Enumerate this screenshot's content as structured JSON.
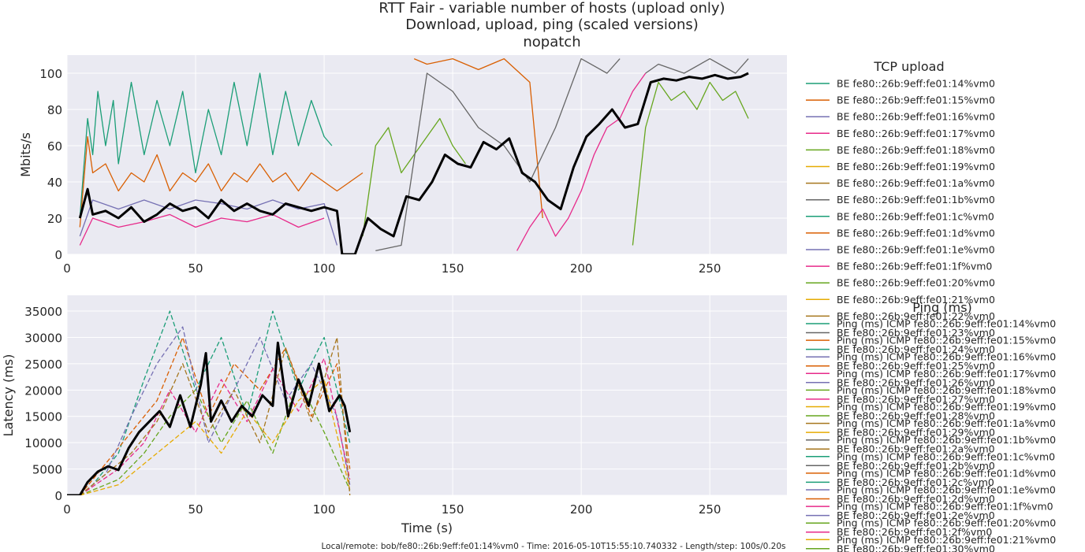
{
  "chart_data": {
    "type": "line",
    "title_lines": [
      "RTT Fair - variable number of hosts (upload only)",
      "Download, upload, ping (scaled versions)",
      "nopatch"
    ],
    "footer": "Local/remote: bob/fe80::26b:9eff:fe01:14%vm0 - Time: 2016-05-10T15:55:10.740332 - Length/step: 100s/0.20s",
    "palette": [
      "#1b9e77",
      "#d95f02",
      "#7570b3",
      "#e7298a",
      "#66a61e",
      "#e6ab02",
      "#a6761d",
      "#666666"
    ],
    "panels": [
      {
        "id": "upload",
        "ylabel": "Mbits/s",
        "xlim": [
          0,
          280
        ],
        "ylim": [
          0,
          110
        ],
        "xticks": [
          0,
          50,
          100,
          150,
          200,
          250
        ],
        "yticks": [
          0,
          20,
          40,
          60,
          80,
          100
        ],
        "legend_title": "TCP upload",
        "series_labels": [
          "BE fe80::26b:9eff:fe01:14%vm0",
          "BE fe80::26b:9eff:fe01:15%vm0",
          "BE fe80::26b:9eff:fe01:16%vm0",
          "BE fe80::26b:9eff:fe01:17%vm0",
          "BE fe80::26b:9eff:fe01:18%vm0",
          "BE fe80::26b:9eff:fe01:19%vm0",
          "BE fe80::26b:9eff:fe01:1a%vm0",
          "BE fe80::26b:9eff:fe01:1b%vm0",
          "BE fe80::26b:9eff:fe01:1c%vm0",
          "BE fe80::26b:9eff:fe01:1d%vm0",
          "BE fe80::26b:9eff:fe01:1e%vm0",
          "BE fe80::26b:9eff:fe01:1f%vm0",
          "BE fe80::26b:9eff:fe01:20%vm0",
          "BE fe80::26b:9eff:fe01:21%vm0",
          "BE fe80::26b:9eff:fe01:22%vm0",
          "BE fe80::26b:9eff:fe01:23%vm0",
          "BE fe80::26b:9eff:fe01:24%vm0",
          "BE fe80::26b:9eff:fe01:25%vm0",
          "BE fe80::26b:9eff:fe01:26%vm0",
          "BE fe80::26b:9eff:fe01:27%vm0",
          "BE fe80::26b:9eff:fe01:28%vm0",
          "BE fe80::26b:9eff:fe01:29%vm0",
          "BE fe80::26b:9eff:fe01:2a%vm0",
          "BE fe80::26b:9eff:fe01:2b%vm0",
          "BE fe80::26b:9eff:fe01:2c%vm0",
          "BE fe80::26b:9eff:fe01:2d%vm0",
          "BE fe80::26b:9eff:fe01:2e%vm0",
          "BE fe80::26b:9eff:fe01:2f%vm0",
          "BE fe80::26b:9eff:fe01:30%vm0"
        ],
        "series": [
          {
            "color": "#1b9e77",
            "dashed": false,
            "x": [
              5,
              8,
              10,
              12,
              15,
              18,
              20,
              25,
              30,
              35,
              40,
              45,
              50,
              55,
              60,
              65,
              70,
              75,
              80,
              85,
              90,
              95,
              100,
              103
            ],
            "y": [
              20,
              75,
              55,
              90,
              60,
              85,
              50,
              95,
              55,
              85,
              60,
              90,
              45,
              80,
              55,
              95,
              60,
              100,
              55,
              90,
              60,
              85,
              65,
              60
            ]
          },
          {
            "color": "#d95f02",
            "dashed": false,
            "x": [
              5,
              8,
              10,
              15,
              20,
              25,
              30,
              35,
              40,
              45,
              50,
              55,
              60,
              65,
              70,
              75,
              80,
              85,
              90,
              95,
              100,
              105,
              110,
              115
            ],
            "y": [
              15,
              65,
              45,
              50,
              35,
              45,
              40,
              55,
              35,
              45,
              40,
              50,
              35,
              45,
              40,
              50,
              40,
              45,
              35,
              45,
              40,
              35,
              40,
              45
            ]
          },
          {
            "color": "#d95f02",
            "dashed": false,
            "x": [
              135,
              140,
              150,
              160,
              170,
              180,
              185
            ],
            "y": [
              108,
              105,
              108,
              102,
              108,
              95,
              20
            ]
          },
          {
            "color": "#7570b3",
            "dashed": false,
            "x": [
              5,
              10,
              20,
              30,
              40,
              50,
              60,
              70,
              80,
              90,
              100,
              105
            ],
            "y": [
              10,
              30,
              25,
              30,
              25,
              30,
              28,
              25,
              30,
              25,
              28,
              5
            ]
          },
          {
            "color": "#e7298a",
            "dashed": false,
            "x": [
              5,
              10,
              20,
              30,
              40,
              50,
              60,
              70,
              80,
              90,
              100
            ],
            "y": [
              5,
              20,
              15,
              18,
              22,
              15,
              20,
              18,
              22,
              15,
              20
            ]
          },
          {
            "color": "#e7298a",
            "dashed": false,
            "x": [
              175,
              180,
              185,
              190,
              195,
              200,
              205,
              210,
              215,
              220,
              225
            ],
            "y": [
              2,
              15,
              25,
              10,
              20,
              35,
              55,
              70,
              75,
              90,
              100
            ]
          },
          {
            "color": "#66a61e",
            "dashed": false,
            "x": [
              115,
              120,
              125,
              130,
              135,
              140,
              145,
              150,
              155
            ],
            "y": [
              10,
              60,
              70,
              45,
              55,
              65,
              75,
              60,
              50
            ]
          },
          {
            "color": "#66a61e",
            "dashed": false,
            "x": [
              220,
              225,
              230,
              235,
              240,
              245,
              250,
              255,
              260,
              265
            ],
            "y": [
              5,
              70,
              95,
              85,
              90,
              80,
              95,
              85,
              90,
              75
            ]
          },
          {
            "color": "#666666",
            "dashed": false,
            "x": [
              120,
              130,
              140,
              150,
              160,
              170,
              180,
              190,
              200,
              210,
              215
            ],
            "y": [
              2,
              5,
              100,
              90,
              70,
              60,
              40,
              70,
              108,
              100,
              108
            ]
          },
          {
            "color": "#666666",
            "dashed": false,
            "x": [
              225,
              230,
              240,
              250,
              260,
              265
            ],
            "y": [
              100,
              105,
              100,
              108,
              100,
              108
            ]
          },
          {
            "color": "#000000",
            "dashed": false,
            "width": 3,
            "x": [
              5,
              8,
              10,
              15,
              20,
              25,
              30,
              35,
              40,
              45,
              50,
              55,
              60,
              65,
              70,
              75,
              80,
              85,
              90,
              95,
              100,
              105,
              107,
              112,
              117,
              122,
              127,
              132,
              137,
              142,
              147,
              152,
              157,
              162,
              167,
              172,
              177,
              182,
              187,
              192,
              197,
              202,
              207,
              212,
              217,
              222,
              227,
              232,
              237,
              242,
              247,
              252,
              257,
              262,
              265
            ],
            "y": [
              20,
              36,
              22,
              24,
              20,
              26,
              18,
              22,
              28,
              24,
              26,
              20,
              30,
              24,
              28,
              24,
              22,
              28,
              26,
              24,
              26,
              24,
              0,
              0,
              20,
              14,
              10,
              32,
              30,
              40,
              55,
              50,
              48,
              62,
              58,
              64,
              45,
              40,
              30,
              25,
              48,
              65,
              72,
              80,
              70,
              72,
              95,
              97,
              96,
              98,
              97,
              99,
              97,
              98,
              100
            ]
          }
        ]
      },
      {
        "id": "ping",
        "ylabel": "Latency (ms)",
        "xlabel": "Time (s)",
        "xlim": [
          0,
          280
        ],
        "ylim": [
          0,
          38000
        ],
        "xticks": [
          0,
          50,
          100,
          150,
          200,
          250
        ],
        "yticks": [
          0,
          5000,
          10000,
          15000,
          20000,
          25000,
          30000,
          35000
        ],
        "legend_title": "Ping (ms)",
        "series_labels": [
          "Ping (ms) ICMP fe80::26b:9eff:fe01:14%vm0",
          "Ping (ms) ICMP fe80::26b:9eff:fe01:15%vm0",
          "Ping (ms) ICMP fe80::26b:9eff:fe01:16%vm0",
          "Ping (ms) ICMP fe80::26b:9eff:fe01:17%vm0",
          "Ping (ms) ICMP fe80::26b:9eff:fe01:18%vm0",
          "Ping (ms) ICMP fe80::26b:9eff:fe01:19%vm0",
          "Ping (ms) ICMP fe80::26b:9eff:fe01:1a%vm0",
          "Ping (ms) ICMP fe80::26b:9eff:fe01:1b%vm0",
          "Ping (ms) ICMP fe80::26b:9eff:fe01:1c%vm0",
          "Ping (ms) ICMP fe80::26b:9eff:fe01:1d%vm0",
          "Ping (ms) ICMP fe80::26b:9eff:fe01:1e%vm0",
          "Ping (ms) ICMP fe80::26b:9eff:fe01:1f%vm0",
          "Ping (ms) ICMP fe80::26b:9eff:fe01:20%vm0",
          "Ping (ms) ICMP fe80::26b:9eff:fe01:21%vm0"
        ],
        "series": [
          {
            "color": "#1b9e77",
            "dashed": true,
            "x": [
              5,
              10,
              20,
              30,
              40,
              50,
              60,
              70,
              80,
              90,
              100,
              110
            ],
            "y": [
              0,
              2000,
              8000,
              22000,
              35000,
              20000,
              30000,
              15000,
              35000,
              20000,
              30000,
              10000
            ]
          },
          {
            "color": "#d95f02",
            "dashed": true,
            "x": [
              5,
              15,
              25,
              35,
              45,
              55,
              65,
              75,
              85,
              95,
              105,
              110
            ],
            "y": [
              0,
              6000,
              12000,
              18000,
              30000,
              15000,
              25000,
              20000,
              28000,
              15000,
              25000,
              5000
            ]
          },
          {
            "color": "#7570b3",
            "dashed": true,
            "x": [
              5,
              15,
              25,
              35,
              45,
              55,
              65,
              75,
              85,
              95,
              105,
              110
            ],
            "y": [
              0,
              4000,
              15000,
              25000,
              32000,
              10000,
              20000,
              30000,
              18000,
              25000,
              15000,
              2000
            ]
          },
          {
            "color": "#e7298a",
            "dashed": true,
            "x": [
              5,
              20,
              30,
              40,
              50,
              60,
              70,
              80,
              90,
              100,
              110
            ],
            "y": [
              0,
              5000,
              10000,
              20000,
              12000,
              22000,
              14000,
              24000,
              16000,
              26000,
              3000
            ]
          },
          {
            "color": "#66a61e",
            "dashed": true,
            "x": [
              5,
              20,
              30,
              40,
              50,
              60,
              70,
              80,
              90,
              100,
              110
            ],
            "y": [
              0,
              3000,
              8000,
              15000,
              20000,
              10000,
              18000,
              8000,
              22000,
              12000,
              1000
            ]
          },
          {
            "color": "#e6ab02",
            "dashed": true,
            "x": [
              5,
              20,
              30,
              40,
              50,
              60,
              70,
              80,
              90,
              100,
              110
            ],
            "y": [
              0,
              2000,
              6000,
              10000,
              14000,
              8000,
              16000,
              10000,
              18000,
              22000,
              1000
            ]
          },
          {
            "color": "#a6761d",
            "dashed": true,
            "x": [
              5,
              25,
              35,
              45,
              55,
              65,
              75,
              85,
              95,
              105,
              110
            ],
            "y": [
              0,
              8000,
              14000,
              25000,
              12000,
              20000,
              10000,
              28000,
              14000,
              30000,
              0
            ]
          },
          {
            "color": "#000000",
            "dashed": false,
            "width": 3,
            "x": [
              0,
              5,
              8,
              12,
              16,
              20,
              24,
              28,
              32,
              36,
              40,
              44,
              48,
              52,
              54,
              56,
              60,
              64,
              68,
              72,
              76,
              80,
              82,
              86,
              90,
              94,
              98,
              102,
              106,
              108,
              110
            ],
            "y": [
              0,
              0,
              2500,
              4500,
              5500,
              4800,
              9000,
              12000,
              14000,
              16000,
              13000,
              19000,
              13000,
              21000,
              27000,
              14000,
              18000,
              14000,
              17000,
              15000,
              19000,
              17000,
              29000,
              15000,
              22000,
              17000,
              25000,
              16000,
              19000,
              17000,
              12000
            ]
          }
        ]
      }
    ]
  }
}
